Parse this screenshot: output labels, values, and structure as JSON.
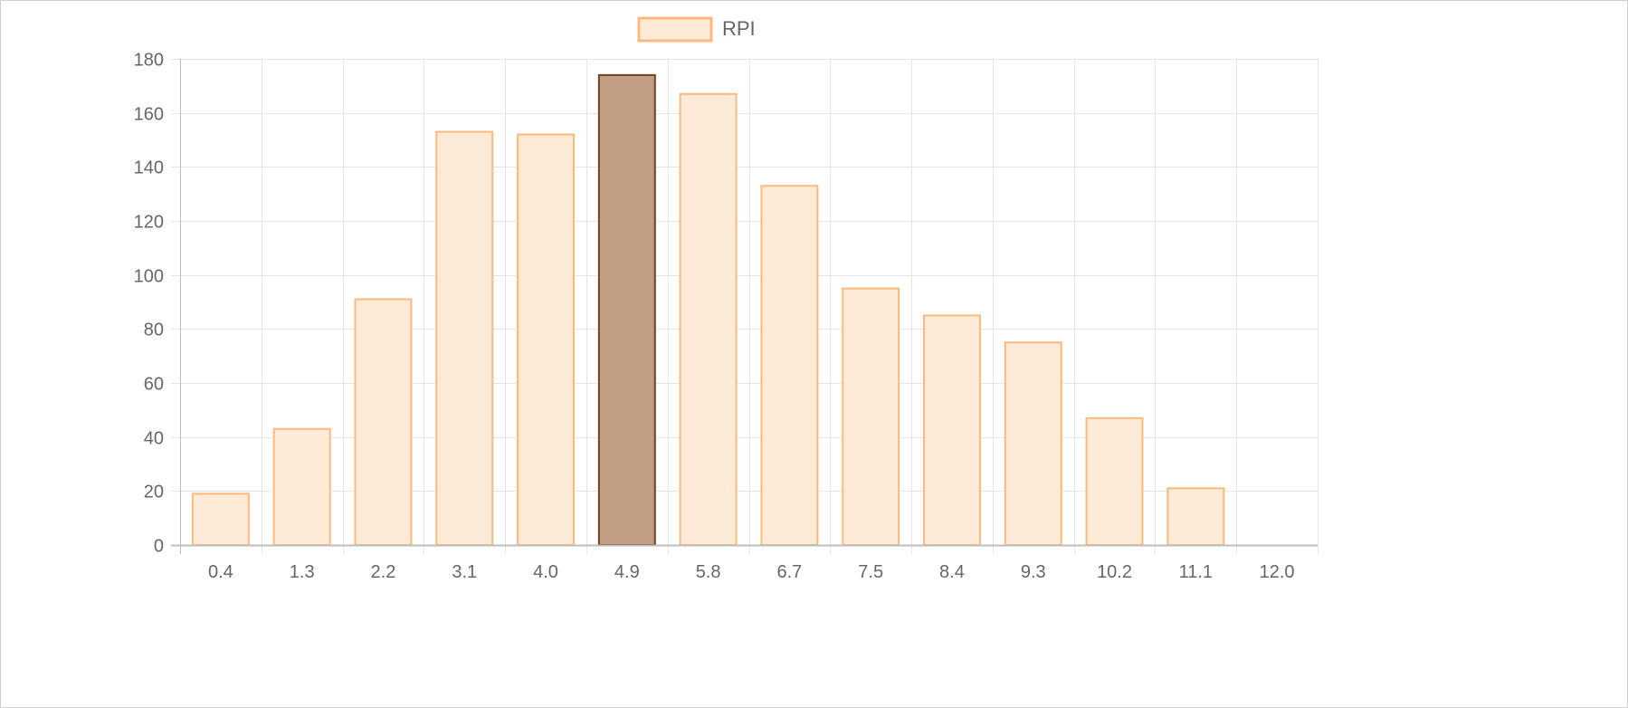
{
  "chart_data": {
    "type": "bar",
    "categories": [
      "0.4",
      "1.3",
      "2.2",
      "3.1",
      "4.0",
      "4.9",
      "5.8",
      "6.7",
      "7.5",
      "8.4",
      "9.3",
      "10.2",
      "11.1",
      "12.0"
    ],
    "series": [
      {
        "name": "RPI",
        "values": [
          19,
          43,
          91,
          153,
          152,
          174,
          167,
          133,
          95,
          85,
          75,
          47,
          21,
          0
        ]
      }
    ],
    "highlighted_category": "4.9",
    "ylim": [
      0,
      180
    ],
    "yticks": [
      0,
      20,
      40,
      60,
      80,
      100,
      120,
      140,
      160,
      180
    ],
    "grid": true,
    "legend_position": "top-center",
    "title": "",
    "xlabel": "",
    "ylabel": ""
  },
  "colors": {
    "bar_fill": "#fdebd8",
    "bar_stroke": "#fdb97c",
    "highlight_fill": "#c29e84",
    "highlight_stroke": "#6e4224",
    "grid": "#e6e6e6",
    "axis": "#bdbdbd",
    "text": "#666666"
  }
}
